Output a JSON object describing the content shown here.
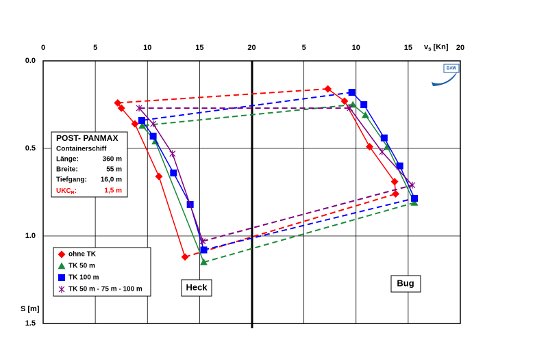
{
  "chart_data": {
    "type": "scatter-loop",
    "x_label": {
      "main": "v",
      "sub": "s",
      "unit": "[Kn]"
    },
    "y_label": "S [m]",
    "xlim": [
      0,
      40
    ],
    "xticks": [
      0,
      5,
      10,
      15,
      20,
      {
        "value": 25,
        "label": "5"
      },
      {
        "value": 30,
        "label": "10"
      },
      {
        "value": 35,
        "label": "15"
      },
      {
        "value": 40,
        "label": "20"
      }
    ],
    "ylim": [
      0,
      1.5
    ],
    "yticks": [
      {
        "value": 0,
        "label": "0.0"
      },
      {
        "value": 0.5,
        "label": "0.5"
      },
      {
        "value": 1,
        "label": "1.0"
      },
      {
        "value": 1.5,
        "label": "1.5"
      }
    ],
    "y_inverted": true,
    "grid": true,
    "legend": "lower left",
    "series": [
      {
        "name": "ohne TK",
        "color": "#ff0000",
        "marker": "diamond",
        "x": [
          7.15,
          7.5,
          8.8,
          11.1,
          13.6,
          33.8,
          33.7,
          31.3,
          28.9,
          27.3
        ],
        "values": [
          0.24,
          0.27,
          0.36,
          0.66,
          1.12,
          0.76,
          0.69,
          0.49,
          0.23,
          0.16
        ]
      },
      {
        "name": "TK 50 m",
        "color": "#1a8a3a",
        "marker": "triangle",
        "x": [
          9.5,
          10.75,
          15.4,
          35.6,
          33.0,
          30.9,
          29.7
        ],
        "values": [
          0.37,
          0.46,
          1.15,
          0.81,
          0.49,
          0.31,
          0.25
        ]
      },
      {
        "name": "TK 100 m",
        "color": "#0000ff",
        "marker": "square",
        "x": [
          9.45,
          10.55,
          12.5,
          14.1,
          15.4,
          35.6,
          34.2,
          32.7,
          30.75,
          29.6
        ],
        "values": [
          0.34,
          0.43,
          0.64,
          0.82,
          1.08,
          0.785,
          0.6,
          0.44,
          0.25,
          0.18
        ]
      },
      {
        "name": "TK 50 m - 75 m - 100 m",
        "color": "#800080",
        "marker": "star",
        "x": [
          9.2,
          10.55,
          12.4,
          15.3,
          35.4,
          32.5,
          29.4
        ],
        "values": [
          0.27,
          0.36,
          0.53,
          1.03,
          0.71,
          0.52,
          0.27
        ]
      }
    ],
    "info_box": {
      "title": "POST- PANMAX",
      "subtitle": "Containerschiff",
      "rows": [
        [
          "Länge:",
          "360 m"
        ],
        [
          "Breite:",
          "55 m"
        ],
        [
          "Tiefgang:",
          "16,0 m"
        ]
      ],
      "ukc_label": "UKC",
      "ukc_sub": "R",
      "ukc_colon": ":",
      "ukc_value": "1,5 m"
    },
    "annotations": [
      "Heck",
      "Bug"
    ],
    "logo_text": "BAW"
  }
}
